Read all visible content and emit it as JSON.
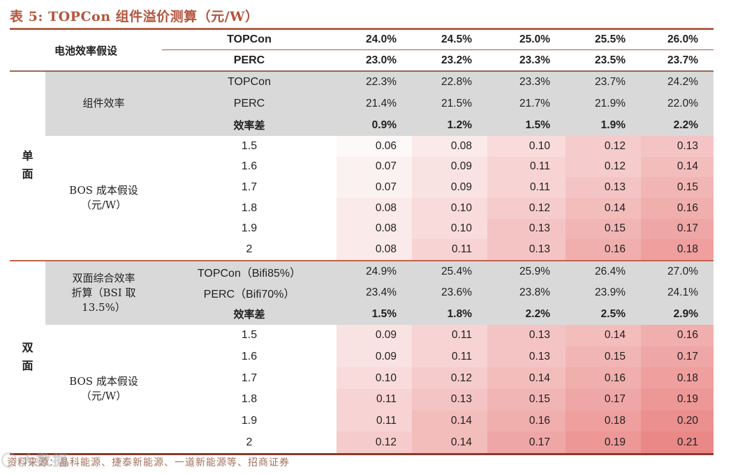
{
  "title": "表 5:  TOPCon 组件溢价测算（元/W）",
  "footer": "资料来源：晶科能源、捷泰新能源、一道新能源等、招商证券",
  "watermark": "大数据",
  "header": {
    "label": "电池效率假设",
    "rows": [
      {
        "name": "TOPCon",
        "values": [
          "24.0%",
          "24.5%",
          "25.0%",
          "25.5%",
          "26.0%"
        ]
      },
      {
        "name": "PERC",
        "values": [
          "23.0%",
          "23.2%",
          "23.3%",
          "23.5%",
          "23.7%"
        ]
      }
    ]
  },
  "module_efficiency": {
    "label": "组件效率",
    "rows": [
      {
        "name": "TOPCon",
        "bold": false,
        "values": [
          "22.3%",
          "22.8%",
          "23.3%",
          "23.7%",
          "24.2%"
        ]
      },
      {
        "name": "PERC",
        "bold": false,
        "values": [
          "21.4%",
          "21.5%",
          "21.7%",
          "21.9%",
          "22.0%"
        ]
      },
      {
        "name": "效率差",
        "bold": true,
        "values": [
          "0.9%",
          "1.2%",
          "1.5%",
          "1.9%",
          "2.2%"
        ]
      }
    ]
  },
  "single_side": {
    "group_label": "单面",
    "bos_label_lines": [
      "BOS 成本假设",
      "（元/W）"
    ],
    "rows": [
      {
        "bos": "1.5",
        "values": [
          "0.06",
          "0.08",
          "0.10",
          "0.12",
          "0.13"
        ]
      },
      {
        "bos": "1.6",
        "values": [
          "0.07",
          "0.09",
          "0.11",
          "0.12",
          "0.14"
        ]
      },
      {
        "bos": "1.7",
        "values": [
          "0.07",
          "0.09",
          "0.11",
          "0.13",
          "0.15"
        ]
      },
      {
        "bos": "1.8",
        "values": [
          "0.08",
          "0.10",
          "0.12",
          "0.14",
          "0.16"
        ]
      },
      {
        "bos": "1.9",
        "values": [
          "0.08",
          "0.10",
          "0.13",
          "0.15",
          "0.17"
        ]
      },
      {
        "bos": "2",
        "values": [
          "0.08",
          "0.11",
          "0.13",
          "0.16",
          "0.18"
        ]
      }
    ]
  },
  "bifacial_efficiency": {
    "label_lines": [
      "双面综合效率",
      "折算（BSI 取",
      "13.5%）"
    ],
    "rows": [
      {
        "name": "TOPCon（Bifi85%）",
        "bold": false,
        "values": [
          "24.9%",
          "25.4%",
          "25.9%",
          "26.4%",
          "27.0%"
        ]
      },
      {
        "name": "PERC（Bifi70%）",
        "bold": false,
        "values": [
          "23.4%",
          "23.6%",
          "23.8%",
          "23.9%",
          "24.1%"
        ]
      },
      {
        "name": "效率差",
        "bold": true,
        "values": [
          "1.5%",
          "1.8%",
          "2.2%",
          "2.5%",
          "2.9%"
        ]
      }
    ]
  },
  "double_side": {
    "group_label": "双面",
    "bos_label_lines": [
      "BOS 成本假设",
      "（元/W）"
    ],
    "rows": [
      {
        "bos": "1.5",
        "values": [
          "0.09",
          "0.11",
          "0.13",
          "0.14",
          "0.16"
        ]
      },
      {
        "bos": "1.6",
        "values": [
          "0.09",
          "0.11",
          "0.13",
          "0.15",
          "0.17"
        ]
      },
      {
        "bos": "1.7",
        "values": [
          "0.10",
          "0.12",
          "0.14",
          "0.16",
          "0.18"
        ]
      },
      {
        "bos": "1.8",
        "values": [
          "0.11",
          "0.13",
          "0.15",
          "0.17",
          "0.19"
        ]
      },
      {
        "bos": "1.9",
        "values": [
          "0.11",
          "0.14",
          "0.16",
          "0.18",
          "0.20"
        ]
      },
      {
        "bos": "2",
        "values": [
          "0.12",
          "0.14",
          "0.17",
          "0.19",
          "0.21"
        ]
      }
    ]
  },
  "heatmap": {
    "min": 0.06,
    "max": 0.21,
    "min_color": "#FDF9F8",
    "max_color": "#EA8888"
  },
  "colors": {
    "accent_title": "#B4543C",
    "gray_bg": "#D9D9D9",
    "rule_red": "#B4604A",
    "rule_thin": "#9A6856",
    "rule_mid": "#C4604C",
    "rule_bottom": "#8A3A2C",
    "footer_text": "#A5705E",
    "body_text": "#1F1F1F"
  }
}
